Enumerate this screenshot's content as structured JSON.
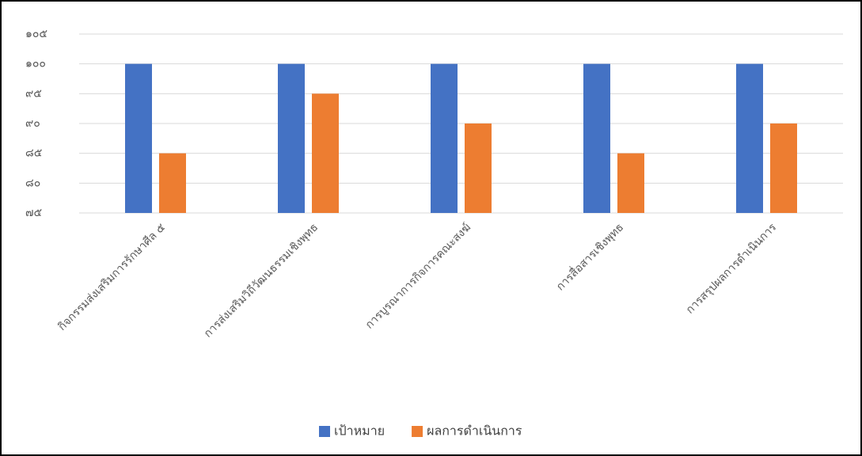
{
  "chart_data": {
    "type": "bar",
    "categories": [
      "กิจกรรมส่งเสริมการรักษาศีล ๕",
      "การส่งเสริมวิถีวัฒนธรรมเชิงพุทธ",
      "การบูรณาการกิจการคณะสงฆ์",
      "การสื่อสารเชิงพุทธ",
      "การสรุปผลการดำเนินการ"
    ],
    "series": [
      {
        "name": "เป้าหมาย",
        "color": "#4472c4",
        "values": [
          100,
          100,
          100,
          100,
          100
        ]
      },
      {
        "name": "ผลการดำเนินการ",
        "color": "#ed7d31",
        "values": [
          85,
          95,
          90,
          85,
          90
        ]
      }
    ],
    "ylim": [
      75,
      105
    ],
    "yticks": [
      {
        "value": 75,
        "label": "๗๕"
      },
      {
        "value": 80,
        "label": "๘๐"
      },
      {
        "value": 85,
        "label": "๘๕"
      },
      {
        "value": 90,
        "label": "๙๐"
      },
      {
        "value": 95,
        "label": "๙๕"
      },
      {
        "value": 100,
        "label": "๑๐๐"
      },
      {
        "value": 105,
        "label": "๑๐๕"
      }
    ],
    "grid": true,
    "legend": "bottom"
  }
}
